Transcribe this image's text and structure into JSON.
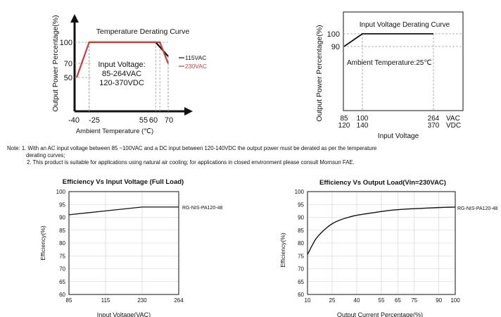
{
  "notes": {
    "prefix": "Note:",
    "line1": "1. With an AC input voltage between 85 ~100VAC and a DC input between 120-140VDC the output power must be derated as per the temperature",
    "line1b": "derating curves;",
    "line2": "2. This product is suitable for applications using natural air cooling; for applications in closed environment please consult Mornsun FAE."
  },
  "colors": {
    "line": "#111111",
    "red": "#d23a3a",
    "grid": "#9a9a9a",
    "background": "#ffffff"
  },
  "chart_data": [
    {
      "type": "line",
      "title": "Temperature Derating Curve",
      "xlabel": "Ambient Temperature (℃)",
      "ylabel": "Output Power Percentage(%)",
      "x_ticks": [
        "-40",
        "-25",
        "55",
        "60",
        "70"
      ],
      "y_ticks": [
        "50",
        "70",
        "100"
      ],
      "annotation": [
        "Input Voltage:",
        "85-264VAC",
        "120-370VDC"
      ],
      "series": [
        {
          "name": "115VAC",
          "color": "#111111",
          "x": [
            -25,
            55,
            70
          ],
          "y": [
            100,
            100,
            80
          ]
        },
        {
          "name": "230VAC",
          "color": "#d23a3a",
          "x": [
            -40,
            -25,
            60,
            70
          ],
          "y": [
            50,
            100,
            100,
            70
          ]
        }
      ]
    },
    {
      "type": "line",
      "title": "Input Voltage Derating Curve",
      "xlabel": "Input Voltage",
      "ylabel": "Output Power Percentage(%)",
      "x_ticks_ac": [
        "85",
        "100",
        "264"
      ],
      "x_ticks_dc": [
        "120",
        "140",
        "370"
      ],
      "x_unit_ac": "VAC",
      "x_unit_dc": "VDC",
      "y_ticks": [
        "90",
        "100"
      ],
      "annotation": "Ambient Temperature:25℃",
      "series": [
        {
          "x": [
            85,
            100,
            264
          ],
          "y": [
            90,
            100,
            100
          ]
        }
      ]
    },
    {
      "type": "line",
      "title": "Efficiency Vs Input Voltage (Full Load)",
      "xlabel": "Input Voltage(VAC)",
      "ylabel": "Efficiency(%)",
      "x_categories": [
        "85",
        "115",
        "230",
        "264"
      ],
      "ylim": [
        60,
        100
      ],
      "y_ticks": [
        60,
        65,
        70,
        75,
        80,
        85,
        90,
        95,
        100
      ],
      "grid": true,
      "series": [
        {
          "name": "RG-NIS-PA120-48",
          "x": [
            85,
            115,
            230,
            264
          ],
          "y": [
            91,
            92.5,
            94,
            94
          ]
        }
      ]
    },
    {
      "type": "line",
      "title": "Efficiency Vs Output Load(Vin=230VAC)",
      "xlabel": "Output Current Percentage(%)",
      "ylabel": "Efficiency(%)",
      "x_ticks": [
        10,
        25,
        40,
        55,
        65,
        75,
        90,
        100
      ],
      "xlim": [
        10,
        100
      ],
      "ylim": [
        60,
        100
      ],
      "y_ticks": [
        60,
        65,
        70,
        75,
        80,
        85,
        90,
        95,
        100
      ],
      "grid": true,
      "series": [
        {
          "name": "RG-NIS-PA120-48",
          "x": [
            10,
            15,
            20,
            25,
            30,
            35,
            40,
            50,
            60,
            70,
            80,
            90,
            100
          ],
          "y": [
            75.5,
            81.5,
            85,
            87.5,
            89,
            90,
            90.8,
            91.8,
            92.7,
            93.2,
            93.5,
            93.8,
            94
          ]
        }
      ]
    }
  ]
}
